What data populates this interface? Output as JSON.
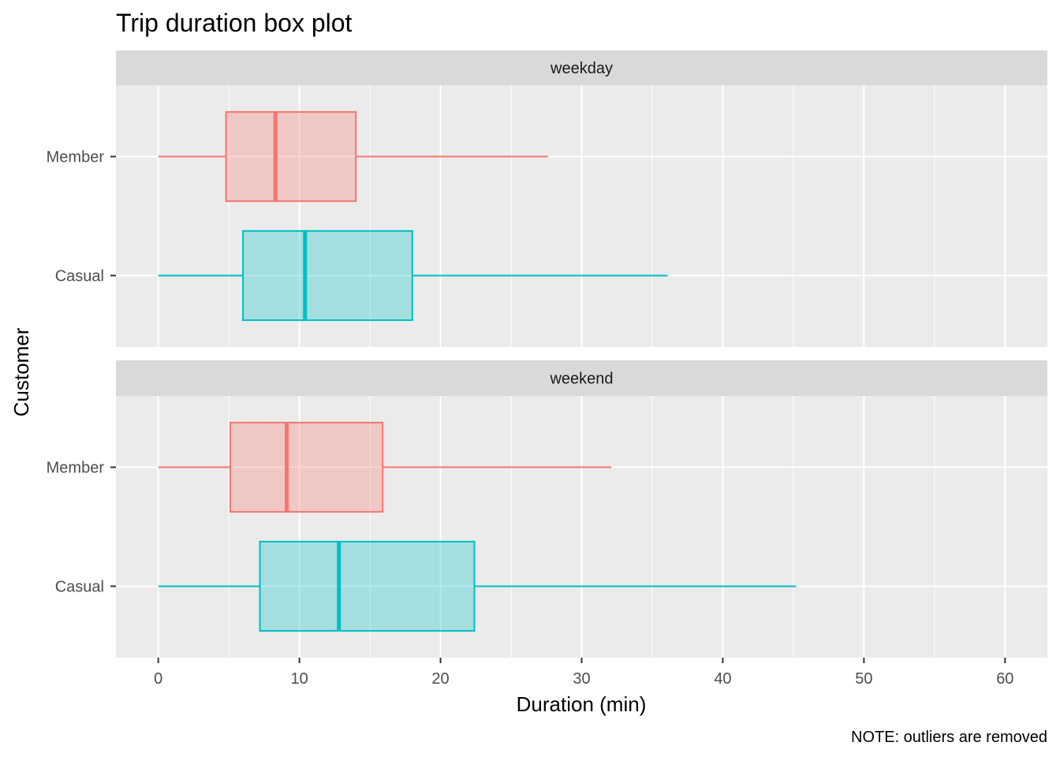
{
  "chart_data": {
    "type": "boxplot",
    "title": "Trip duration box plot",
    "xlabel": "Duration (min)",
    "ylabel": "Customer",
    "caption": "NOTE: outliers are removed",
    "xlim": [
      -3,
      63
    ],
    "x_ticks": [
      "0",
      "10",
      "20",
      "30",
      "40",
      "50",
      "60"
    ],
    "grid": true,
    "legend": "none",
    "colors": {
      "Member": "#F8766D",
      "Casual": "#00BFC4"
    },
    "facets": [
      {
        "label": "weekday",
        "series": [
          {
            "name": "Member",
            "whisker_low": 0,
            "q1": 4.8,
            "median": 8.3,
            "q3": 14.0,
            "whisker_high": 27.6
          },
          {
            "name": "Casual",
            "whisker_low": 0,
            "q1": 6.0,
            "median": 10.4,
            "q3": 18.0,
            "whisker_high": 36.1
          }
        ]
      },
      {
        "label": "weekend",
        "series": [
          {
            "name": "Member",
            "whisker_low": 0,
            "q1": 5.1,
            "median": 9.1,
            "q3": 15.9,
            "whisker_high": 32.1
          },
          {
            "name": "Casual",
            "whisker_low": 0,
            "q1": 7.2,
            "median": 12.8,
            "q3": 22.4,
            "whisker_high": 45.2
          }
        ]
      }
    ]
  }
}
